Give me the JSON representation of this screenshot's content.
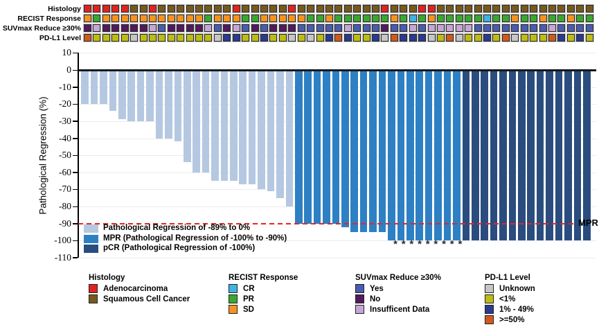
{
  "figure": {
    "mpr_line_label": "MPR",
    "asterisk_glyph": "*",
    "bar_legend": [
      {
        "code": "reg",
        "label": "Pathological Regression of -89% to 0%",
        "color": "#b5c8e2"
      },
      {
        "code": "mpr",
        "label": "MPR (Pathological Regression of -100% to -90%)",
        "color": "#2d80c3"
      },
      {
        "code": "pcr",
        "label": "pCR (Pathological Regression of -100%)",
        "color": "#2a4d7e"
      }
    ]
  },
  "chart_data": {
    "type": "bar",
    "title": "",
    "xlabel": "",
    "ylabel": "Pathological Regression (%)",
    "ylim": [
      -110,
      10
    ],
    "yticks": [
      10,
      0,
      -10,
      -20,
      -30,
      -40,
      -50,
      -60,
      -70,
      -80,
      -90,
      -100,
      -110
    ],
    "reference_line": {
      "y": -90,
      "label": "MPR",
      "style": "dashed",
      "color": "#e8241f"
    },
    "values": [
      -20,
      -20,
      -20,
      -24,
      -29,
      -30,
      -30,
      -30,
      -40,
      -40,
      -42,
      -54,
      -60,
      -60,
      -65,
      -65,
      -65,
      -67,
      -67,
      -70,
      -71,
      -75,
      -80,
      -90,
      -90,
      -90,
      -90,
      -90,
      -92,
      -95,
      -95,
      -95,
      -95,
      -100,
      -100,
      -100,
      -100,
      -100,
      -100,
      -100,
      -100,
      -100,
      -100,
      -100,
      -100,
      -100,
      -100,
      -100,
      -100,
      -100,
      -100,
      -100,
      -100,
      -100,
      -100
    ],
    "group_boundaries": {
      "reg_end": 23,
      "mpr_end": 41
    },
    "asterisk_bars": [
      33,
      34,
      35,
      36,
      37,
      38,
      39,
      40,
      41
    ],
    "annotation_tracks": {
      "histology": [
        "A",
        "A",
        "A",
        "A",
        "A",
        "S",
        "S",
        "A",
        "S",
        "S",
        "S",
        "S",
        "S",
        "S",
        "S",
        "S",
        "A",
        "S",
        "S",
        "S",
        "S",
        "S",
        "A",
        "S",
        "S",
        "S",
        "S",
        "S",
        "S",
        "S",
        "S",
        "S",
        "A",
        "S",
        "S",
        "S",
        "A",
        "A",
        "S",
        "S",
        "S",
        "S",
        "S",
        "S",
        "S",
        "S",
        "S",
        "S",
        "S",
        "S",
        "S",
        "S",
        "S",
        "S",
        "S"
      ],
      "recist": [
        "SD",
        "PR",
        "SD",
        "SD",
        "SD",
        "SD",
        "SD",
        "SD",
        "SD",
        "SD",
        "SD",
        "SD",
        "SD",
        "PR",
        "SD",
        "SD",
        "SD",
        "PR",
        "PR",
        "SD",
        "SD",
        "SD",
        "SD",
        "SD",
        "PR",
        "PR",
        "SD",
        "PR",
        "PR",
        "PR",
        "PR",
        "PR",
        "PR",
        "SD",
        "PR",
        "CR",
        "PR",
        "SD",
        "PR",
        "PR",
        "PR",
        "PR",
        "PR",
        "CR",
        "PR",
        "PR",
        "SD",
        "PR",
        "PR",
        "SD",
        "PR",
        "PR",
        "SD",
        "PR",
        "PR"
      ],
      "suvmax": [
        "No",
        "ID",
        "No",
        "No",
        "No",
        "No",
        "No",
        "ID",
        "Yes",
        "No",
        "No",
        "No",
        "No",
        "ID",
        "Yes",
        "No",
        "ID",
        "Yes",
        "No",
        "Yes",
        "No",
        "No",
        "No",
        "Yes",
        "Yes",
        "Yes",
        "Yes",
        "Yes",
        "ID",
        "Yes",
        "Yes",
        "Yes",
        "No",
        "Yes",
        "Yes",
        "ID",
        "Yes",
        "ID",
        "ID",
        "ID",
        "ID",
        "ID",
        "Yes",
        "Yes",
        "Yes",
        "Yes",
        "Yes",
        "Yes",
        "Yes",
        "Yes",
        "ID",
        "Yes",
        "Yes",
        "Yes",
        "Yes"
      ],
      "pdl1": [
        "P50",
        "L1",
        "L1",
        "L1",
        "L1",
        "U",
        "L1",
        "L1",
        "L1",
        "L1",
        "L1",
        "L1",
        "L1",
        "L1",
        "U",
        "M",
        "M",
        "L1",
        "L1",
        "M",
        "L1",
        "L1",
        "U",
        "L1",
        "U",
        "L1",
        "M",
        "P50",
        "M",
        "L1",
        "L1",
        "M",
        "U",
        "P50",
        "M",
        "M",
        "M",
        "U",
        "L1",
        "P50",
        "U",
        "L1",
        "L1",
        "M",
        "L1",
        "P50",
        "U",
        "L1",
        "L1",
        "L1",
        "P50",
        "M",
        "L1",
        "M",
        "L1"
      ]
    },
    "track_order": [
      "histology",
      "recist",
      "suvmax",
      "pdl1"
    ],
    "legends": {
      "histology": {
        "title": "Histology",
        "items": [
          {
            "code": "A",
            "label": "Adenocarcinoma",
            "color": "#df2420"
          },
          {
            "code": "S",
            "label": "Squamous Cell Cancer",
            "color": "#77591f"
          }
        ]
      },
      "recist": {
        "title": "RECIST Response",
        "items": [
          {
            "code": "CR",
            "label": "CR",
            "color": "#3fb3e4"
          },
          {
            "code": "PR",
            "label": "PR",
            "color": "#3aa72f"
          },
          {
            "code": "SD",
            "label": "SD",
            "color": "#f6921e"
          }
        ]
      },
      "suvmax": {
        "title": "SUVmax Reduce ≥30%",
        "items": [
          {
            "code": "Yes",
            "label": "Yes",
            "color": "#4a5cb0"
          },
          {
            "code": "No",
            "label": "No",
            "color": "#53195e"
          },
          {
            "code": "ID",
            "label": "Insufficent Data",
            "color": "#c6a6d6"
          }
        ]
      },
      "pdl1": {
        "title": "PD-L1 Level",
        "items": [
          {
            "code": "U",
            "label": "Unknown",
            "color": "#c6c6c6"
          },
          {
            "code": "L1",
            "label": "<1%",
            "color": "#bdbc12"
          },
          {
            "code": "M",
            "label": "1% - 49%",
            "color": "#2a3a8e"
          },
          {
            "code": "P50",
            "label": ">=50%",
            "color": "#d0591d"
          }
        ]
      }
    }
  }
}
